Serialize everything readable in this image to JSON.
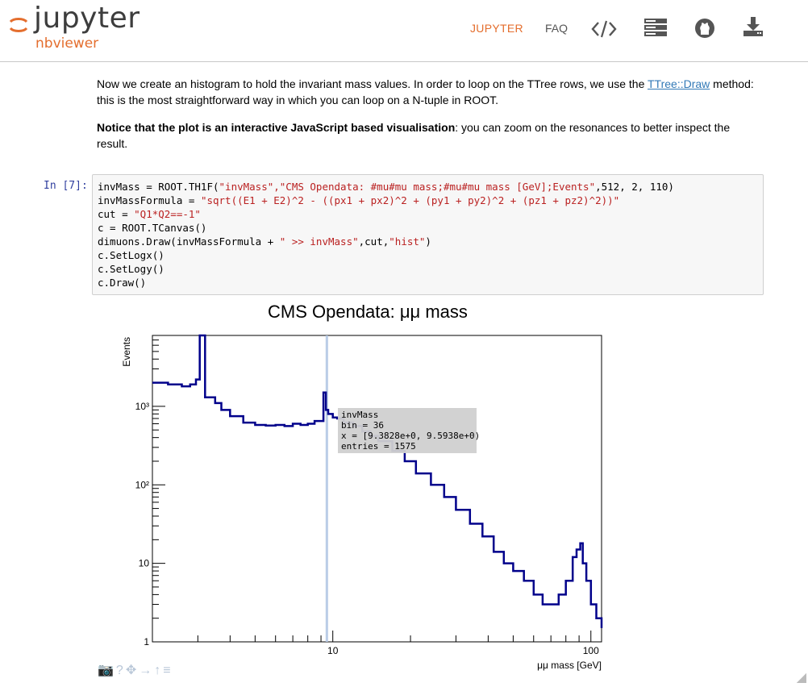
{
  "header": {
    "logo_word": "jupyter",
    "logo_sub": "nbviewer",
    "nav_jupyter": "JUPYTER",
    "nav_faq": "FAQ",
    "icons": [
      "code-icon",
      "server-icon",
      "github-icon",
      "download-icon"
    ]
  },
  "md1": {
    "text_before": "Now we create an histogram to hold the invariant mass values. In order to loop on the TTree rows, we use the ",
    "link": "TTree::Draw",
    "text_after": " method: this is the most straightforward way in which you can loop on a N-tuple in ROOT."
  },
  "md2": {
    "bold": "Notice that the plot is an interactive JavaScript based visualisation",
    "rest": ": you can zoom on the resonances to better inspect the result."
  },
  "cell": {
    "prompt": "In [7]:",
    "lines": [
      [
        "invMass = ROOT.TH1F(",
        "\"invMass\",\"CMS Opendata: #mu#mu mass;#mu#mu mass [GeV];Events\"",
        ",512, 2, 110)"
      ],
      [
        "invMassFormula = ",
        "\"sqrt((E1 + E2)^2 - ((px1 + px2)^2 + (py1 + py2)^2 + (pz1 + pz2)^2))\"",
        ""
      ],
      [
        "cut = ",
        "\"Q1*Q2==-1\"",
        ""
      ],
      [
        "c = ROOT.TCanvas()",
        "",
        ""
      ],
      [
        "dimuons.Draw(invMassFormula + ",
        "\" >> invMass\"",
        ",cut,"
      ],
      [
        "c.SetLogx()",
        "",
        ""
      ],
      [
        "c.SetLogy()",
        "",
        ""
      ],
      [
        "c.Draw()",
        "",
        ""
      ]
    ],
    "line5_tail_str": "\"hist\"",
    "line5_end": ")"
  },
  "chart_data": {
    "type": "line",
    "title": "CMS Opendata: μμ mass",
    "xlabel": "μμ mass [GeV]",
    "ylabel": "Events",
    "xscale": "log",
    "yscale": "log",
    "xlim": [
      2,
      110
    ],
    "ylim": [
      1,
      8000
    ],
    "x_ticklabels": [
      "10",
      "100"
    ],
    "y_ticklabels": [
      "1",
      "10",
      "10²",
      "10³"
    ],
    "series": [
      {
        "color": "#00008b",
        "x": [
          2.0,
          2.3,
          2.6,
          2.8,
          2.95,
          3.05,
          3.1,
          3.2,
          3.5,
          3.7,
          4.0,
          4.5,
          5.0,
          5.5,
          6.0,
          6.5,
          7.0,
          7.5,
          8.0,
          8.5,
          9.0,
          9.2,
          9.4,
          9.6,
          10.0,
          10.4,
          11,
          12,
          13,
          14,
          15,
          17,
          19,
          21,
          24,
          27,
          30,
          34,
          38,
          42,
          46,
          50,
          55,
          60,
          65,
          70,
          75,
          80,
          85,
          88,
          91,
          93,
          96,
          100,
          105,
          110
        ],
        "y": [
          2000,
          1900,
          1800,
          1900,
          2200,
          8000,
          8000,
          1300,
          1100,
          900,
          750,
          620,
          580,
          570,
          580,
          560,
          600,
          580,
          600,
          650,
          650,
          1500,
          900,
          800,
          720,
          700,
          620,
          560,
          480,
          420,
          360,
          270,
          200,
          140,
          100,
          70,
          48,
          32,
          22,
          14,
          10,
          8,
          6,
          4,
          3,
          3,
          4,
          6,
          12,
          15,
          18,
          10,
          6,
          3,
          2,
          1.5
        ]
      }
    ],
    "tooltip": {
      "name": "invMass",
      "bin": "bin = 36",
      "x": "x = [9.3828e+0, 9.5938e+0)",
      "entries": "entries = 1575"
    }
  }
}
